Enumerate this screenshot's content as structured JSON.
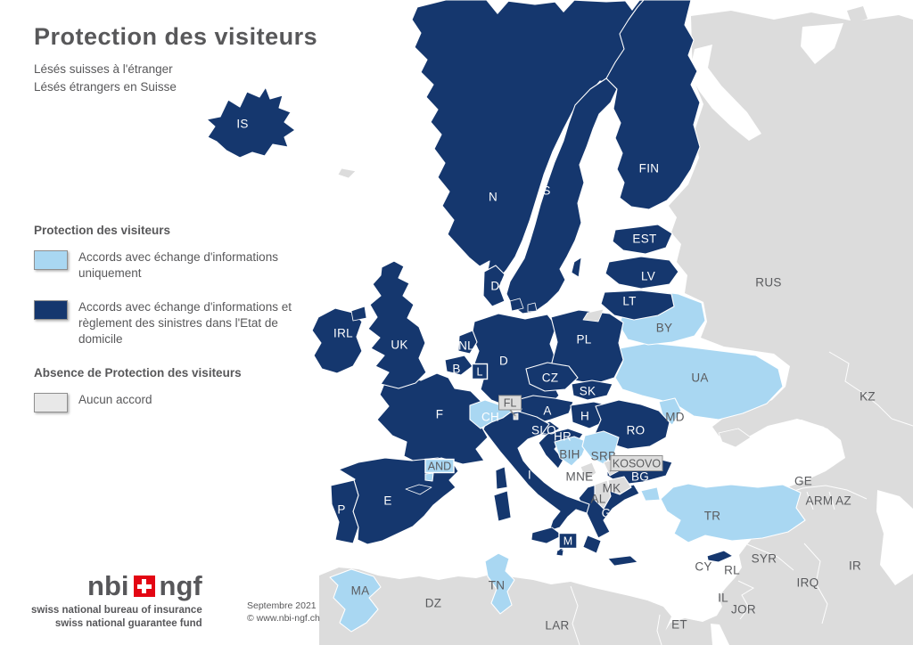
{
  "header": {
    "title": "Protection des visiteurs",
    "subtitle1": "Lésés suisses à l'étranger",
    "subtitle2": "Lésés étrangers en Suisse"
  },
  "legend": {
    "section1_title": "Protection des visiteurs",
    "items": [
      {
        "label": "Accords avec échange d'informations uniquement",
        "color": "#a9d7f2"
      },
      {
        "label": "Accords avec échange d'informations et règlement des sinistres dans l'Etat de domicile",
        "color": "#15376e"
      }
    ],
    "section2_title": "Absence de Protection des visiteurs",
    "items2": [
      {
        "label": "Aucun accord",
        "color": "#e8e8e8"
      }
    ]
  },
  "map": {
    "colors": {
      "dark": "#15376e",
      "light": "#a9d7f2",
      "gray": "#dcdcdc",
      "sea": "#ffffff",
      "border": "#ffffff",
      "label_on_dark": "#ffffff",
      "label_on_light": "#5a5b5e",
      "box_border": "#8f8f8f"
    },
    "countries": [
      {
        "id": "IS",
        "label": "IS",
        "status": "dark",
        "label_style": "white"
      },
      {
        "id": "N",
        "label": "N",
        "status": "dark",
        "label_style": "white"
      },
      {
        "id": "S",
        "label": "S",
        "status": "dark",
        "label_style": "white"
      },
      {
        "id": "FIN",
        "label": "FIN",
        "status": "dark",
        "label_style": "white"
      },
      {
        "id": "EST",
        "label": "EST",
        "status": "dark",
        "label_style": "white"
      },
      {
        "id": "LV",
        "label": "LV",
        "status": "dark",
        "label_style": "white"
      },
      {
        "id": "LT",
        "label": "LT",
        "status": "dark",
        "label_style": "white"
      },
      {
        "id": "DK",
        "label": "DK",
        "status": "dark",
        "label_style": "white"
      },
      {
        "id": "IRL",
        "label": "IRL",
        "status": "dark",
        "label_style": "white"
      },
      {
        "id": "UK",
        "label": "UK",
        "status": "dark",
        "label_style": "white"
      },
      {
        "id": "NL",
        "label": "NL",
        "status": "dark",
        "label_style": "white"
      },
      {
        "id": "B",
        "label": "B",
        "status": "dark",
        "label_style": "white"
      },
      {
        "id": "D",
        "label": "D",
        "status": "dark",
        "label_style": "white"
      },
      {
        "id": "PL",
        "label": "PL",
        "status": "dark",
        "label_style": "white"
      },
      {
        "id": "CZ",
        "label": "CZ",
        "status": "dark",
        "label_style": "white"
      },
      {
        "id": "SK",
        "label": "SK",
        "status": "dark",
        "label_style": "white"
      },
      {
        "id": "F",
        "label": "F",
        "status": "dark",
        "label_style": "white"
      },
      {
        "id": "CH",
        "label": "CH",
        "status": "light",
        "label_style": "white"
      },
      {
        "id": "A",
        "label": "A",
        "status": "dark",
        "label_style": "white"
      },
      {
        "id": "H",
        "label": "H",
        "status": "dark",
        "label_style": "white"
      },
      {
        "id": "SLO",
        "label": "SLO",
        "status": "dark",
        "label_style": "white"
      },
      {
        "id": "HR",
        "label": "HR",
        "status": "dark",
        "label_style": "white"
      },
      {
        "id": "RO",
        "label": "RO",
        "status": "dark",
        "label_style": "white"
      },
      {
        "id": "MD",
        "label": "MD",
        "status": "light",
        "label_style": "gray"
      },
      {
        "id": "UA",
        "label": "UA",
        "status": "light",
        "label_style": "gray"
      },
      {
        "id": "BY",
        "label": "BY",
        "status": "light",
        "label_style": "gray"
      },
      {
        "id": "RUS",
        "label": "RUS",
        "status": "gray",
        "label_style": "gray"
      },
      {
        "id": "KZ",
        "label": "KZ",
        "status": "gray",
        "label_style": "gray"
      },
      {
        "id": "P",
        "label": "P",
        "status": "dark",
        "label_style": "white"
      },
      {
        "id": "E",
        "label": "E",
        "status": "dark",
        "label_style": "white"
      },
      {
        "id": "I",
        "label": "I",
        "status": "dark",
        "label_style": "white"
      },
      {
        "id": "BIH",
        "label": "BIH",
        "status": "light",
        "label_style": "gray"
      },
      {
        "id": "SRB",
        "label": "SRB",
        "status": "light",
        "label_style": "gray"
      },
      {
        "id": "MNE",
        "label": "MNE",
        "status": "gray",
        "label_style": "gray"
      },
      {
        "id": "MK",
        "label": "MK",
        "status": "gray",
        "label_style": "gray"
      },
      {
        "id": "AL",
        "label": "AL",
        "status": "gray",
        "label_style": "gray"
      },
      {
        "id": "BG",
        "label": "BG",
        "status": "dark",
        "label_style": "white"
      },
      {
        "id": "GR",
        "label": "GR",
        "status": "dark",
        "label_style": "white"
      },
      {
        "id": "TR",
        "label": "TR",
        "status": "light",
        "label_style": "gray"
      },
      {
        "id": "GE",
        "label": "GE",
        "status": "gray",
        "label_style": "gray"
      },
      {
        "id": "ARM",
        "label": "ARM",
        "status": "gray",
        "label_style": "gray"
      },
      {
        "id": "AZ",
        "label": "AZ",
        "status": "gray",
        "label_style": "gray"
      },
      {
        "id": "CY",
        "label": "CY",
        "status": "dark",
        "label_style": "gray"
      },
      {
        "id": "RL",
        "label": "RL",
        "status": "gray",
        "label_style": "gray"
      },
      {
        "id": "SYR",
        "label": "SYR",
        "status": "gray",
        "label_style": "gray"
      },
      {
        "id": "IL",
        "label": "IL",
        "status": "gray",
        "label_style": "gray"
      },
      {
        "id": "JOR",
        "label": "JOR",
        "status": "gray",
        "label_style": "gray"
      },
      {
        "id": "IRQ",
        "label": "IRQ",
        "status": "gray",
        "label_style": "gray"
      },
      {
        "id": "IR",
        "label": "IR",
        "status": "gray",
        "label_style": "gray"
      },
      {
        "id": "ET",
        "label": "ET",
        "status": "gray",
        "label_style": "gray"
      },
      {
        "id": "MA",
        "label": "MA",
        "status": "light",
        "label_style": "gray"
      },
      {
        "id": "DZ",
        "label": "DZ",
        "status": "gray",
        "label_style": "gray"
      },
      {
        "id": "TN",
        "label": "TN",
        "status": "light",
        "label_style": "gray"
      },
      {
        "id": "LAR",
        "label": "LAR",
        "status": "gray",
        "label_style": "gray"
      },
      {
        "id": "AND",
        "label": null,
        "status": "light",
        "label_style": "gray"
      }
    ],
    "boxed_labels": [
      {
        "id": "L",
        "text": "L",
        "style": "dark"
      },
      {
        "id": "FL",
        "text": "FL",
        "style": "gray"
      },
      {
        "id": "AND",
        "text": "AND",
        "style": "light"
      },
      {
        "id": "KOSOVO",
        "text": "KOSOVO",
        "style": "gray"
      },
      {
        "id": "M",
        "text": "M",
        "style": "dark"
      }
    ]
  },
  "footer": {
    "logo_left": "nbi",
    "logo_right": "ngf",
    "tagline1": "swiss national bureau of insurance",
    "tagline2": "swiss national guarantee fund",
    "date": "Septembre 2021",
    "copyright": "© www.nbi-ngf.ch"
  }
}
